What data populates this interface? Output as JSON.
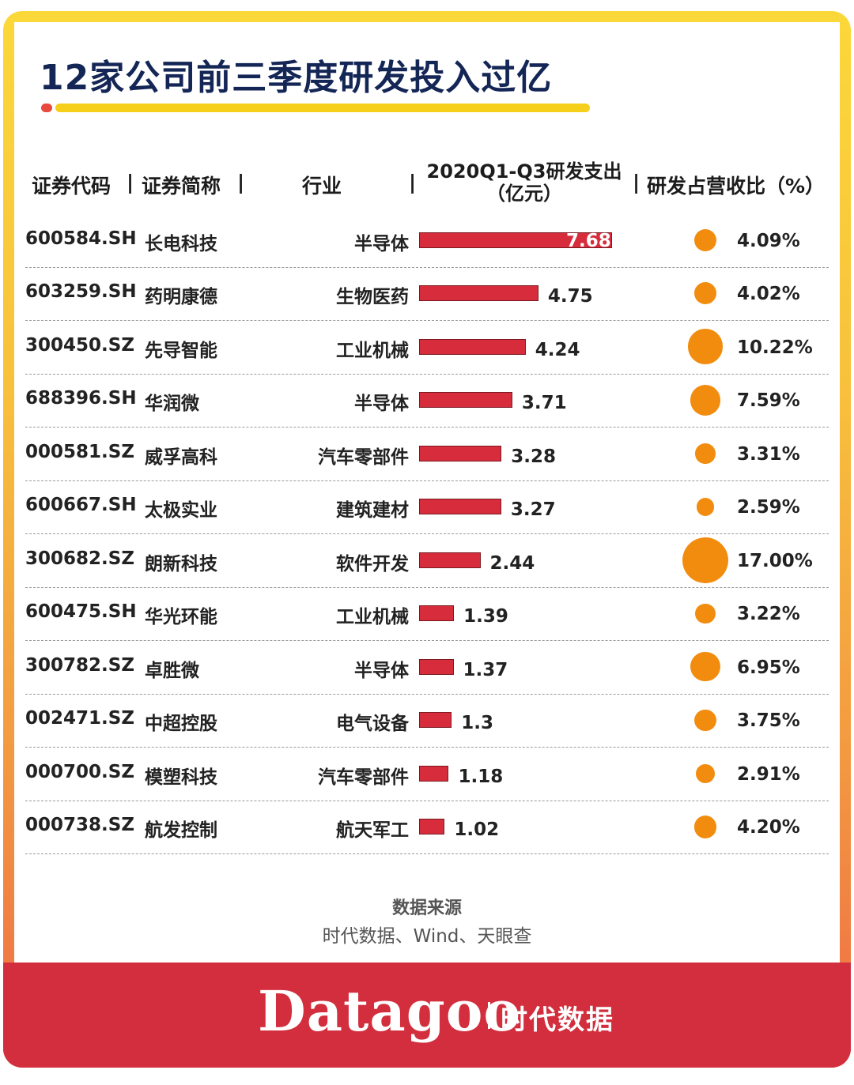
{
  "title": "12家公司前三季度研发投入过亿",
  "headers": {
    "code": "证券代码",
    "name": "证券简称",
    "industry": "行业",
    "rd_line1": "2020Q1-Q3研发支出",
    "rd_line2": "（亿元）",
    "ratio": "研发占营收比（%）",
    "separator": "|"
  },
  "chart_data": {
    "type": "table",
    "title": "12家公司前三季度研发投入过亿",
    "columns": [
      "证券代码",
      "证券简称",
      "行业",
      "2020Q1-Q3研发支出（亿元）",
      "研发占营收比（%）"
    ],
    "rows": [
      {
        "code": "600584.SH",
        "name": "长电科技",
        "industry": "半导体",
        "rd": 7.68,
        "rd_label": "7.68",
        "ratio": 4.09,
        "ratio_label": "4.09%"
      },
      {
        "code": "603259.SH",
        "name": "药明康德",
        "industry": "生物医药",
        "rd": 4.75,
        "rd_label": "4.75",
        "ratio": 4.02,
        "ratio_label": "4.02%"
      },
      {
        "code": "300450.SZ",
        "name": "先导智能",
        "industry": "工业机械",
        "rd": 4.24,
        "rd_label": "4.24",
        "ratio": 10.22,
        "ratio_label": "10.22%"
      },
      {
        "code": "688396.SH",
        "name": "华润微",
        "industry": "半导体",
        "rd": 3.71,
        "rd_label": "3.71",
        "ratio": 7.59,
        "ratio_label": "7.59%"
      },
      {
        "code": "000581.SZ",
        "name": "威孚高科",
        "industry": "汽车零部件",
        "rd": 3.28,
        "rd_label": "3.28",
        "ratio": 3.31,
        "ratio_label": "3.31%"
      },
      {
        "code": "600667.SH",
        "name": "太极实业",
        "industry": "建筑建材",
        "rd": 3.27,
        "rd_label": "3.27",
        "ratio": 2.59,
        "ratio_label": "2.59%"
      },
      {
        "code": "300682.SZ",
        "name": "朗新科技",
        "industry": "软件开发",
        "rd": 2.44,
        "rd_label": "2.44",
        "ratio": 17.0,
        "ratio_label": "17.00%"
      },
      {
        "code": "600475.SH",
        "name": "华光环能",
        "industry": "工业机械",
        "rd": 1.39,
        "rd_label": "1.39",
        "ratio": 3.22,
        "ratio_label": "3.22%"
      },
      {
        "code": "300782.SZ",
        "name": "卓胜微",
        "industry": "半导体",
        "rd": 1.37,
        "rd_label": "1.37",
        "ratio": 6.95,
        "ratio_label": "6.95%"
      },
      {
        "code": "002471.SZ",
        "name": "中超控股",
        "industry": "电气设备",
        "rd": 1.3,
        "rd_label": "1.3",
        "ratio": 3.75,
        "ratio_label": "3.75%"
      },
      {
        "code": "000700.SZ",
        "name": "模塑科技",
        "industry": "汽车零部件",
        "rd": 1.18,
        "rd_label": "1.18",
        "ratio": 2.91,
        "ratio_label": "2.91%"
      },
      {
        "code": "000738.SZ",
        "name": "航发控制",
        "industry": "航天军工",
        "rd": 1.02,
        "rd_label": "1.02",
        "ratio": 4.2,
        "ratio_label": "4.20%"
      }
    ]
  },
  "colors": {
    "bar": "#d72c3b",
    "bubble": "#f28c0e",
    "title": "#142656",
    "footer": "#d22e3d"
  },
  "source": {
    "title": "数据来源",
    "text": "时代数据、Wind、天眼查"
  },
  "brand": {
    "logo": "Datagoo",
    "cn": "时代数据"
  }
}
